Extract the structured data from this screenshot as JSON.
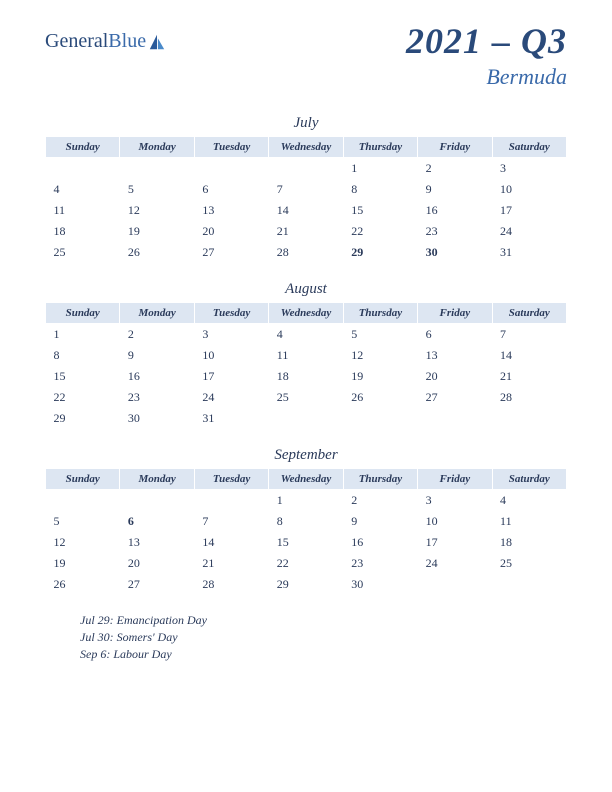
{
  "logo": {
    "part1": "General",
    "part2": "Blue"
  },
  "title": "2021 – Q3",
  "subtitle": "Bermuda",
  "day_headers": [
    "Sunday",
    "Monday",
    "Tuesday",
    "Wednesday",
    "Thursday",
    "Friday",
    "Saturday"
  ],
  "colors": {
    "header_bg": "#dde6f2",
    "text": "#2a3a5a",
    "accent": "#3a6aaa",
    "holiday": "#c02020",
    "page_bg": "#ffffff"
  },
  "months": [
    {
      "name": "July",
      "weeks": [
        [
          "",
          "",
          "",
          "",
          "1",
          "2",
          "3"
        ],
        [
          "4",
          "5",
          "6",
          "7",
          "8",
          "9",
          "10"
        ],
        [
          "11",
          "12",
          "13",
          "14",
          "15",
          "16",
          "17"
        ],
        [
          "18",
          "19",
          "20",
          "21",
          "22",
          "23",
          "24"
        ],
        [
          "25",
          "26",
          "27",
          "28",
          "29",
          "30",
          "31"
        ]
      ],
      "holiday_days": [
        "29",
        "30"
      ]
    },
    {
      "name": "August",
      "weeks": [
        [
          "1",
          "2",
          "3",
          "4",
          "5",
          "6",
          "7"
        ],
        [
          "8",
          "9",
          "10",
          "11",
          "12",
          "13",
          "14"
        ],
        [
          "15",
          "16",
          "17",
          "18",
          "19",
          "20",
          "21"
        ],
        [
          "22",
          "23",
          "24",
          "25",
          "26",
          "27",
          "28"
        ],
        [
          "29",
          "30",
          "31",
          "",
          "",
          "",
          ""
        ]
      ],
      "holiday_days": []
    },
    {
      "name": "September",
      "weeks": [
        [
          "",
          "",
          "",
          "1",
          "2",
          "3",
          "4"
        ],
        [
          "5",
          "6",
          "7",
          "8",
          "9",
          "10",
          "11"
        ],
        [
          "12",
          "13",
          "14",
          "15",
          "16",
          "17",
          "18"
        ],
        [
          "19",
          "20",
          "21",
          "22",
          "23",
          "24",
          "25"
        ],
        [
          "26",
          "27",
          "28",
          "29",
          "30",
          "",
          ""
        ]
      ],
      "holiday_days": [
        "6"
      ]
    }
  ],
  "holidays": [
    "Jul 29: Emancipation Day",
    "Jul 30: Somers' Day",
    "Sep 6: Labour Day"
  ]
}
